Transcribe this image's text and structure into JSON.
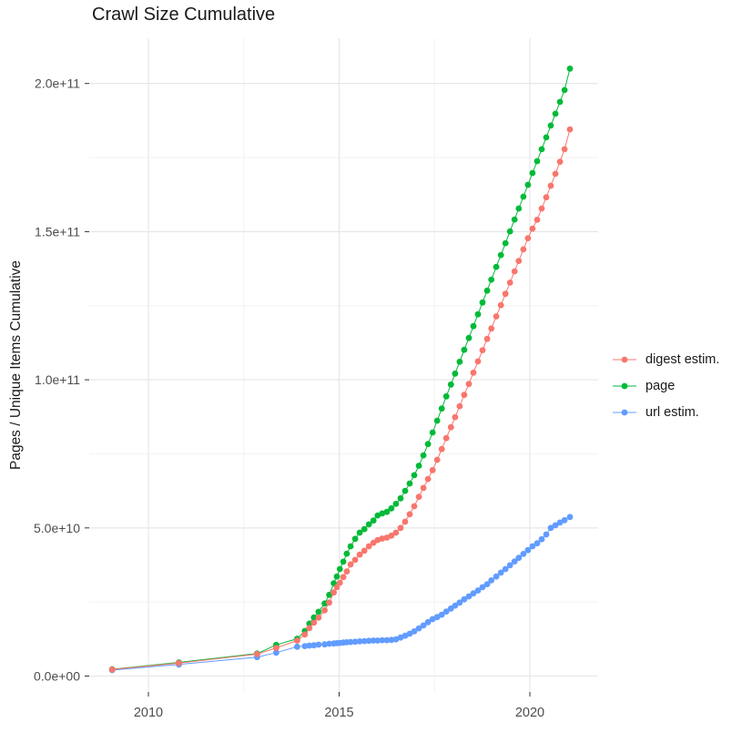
{
  "chart_data": {
    "type": "scatter",
    "title": "Crawl Size Cumulative",
    "ylabel": "Pages / Unique Items Cumulative",
    "xlabel": "",
    "legend_position": "right",
    "grid": true,
    "xlim_years": [
      2008.45,
      2021.79
    ],
    "ylim": [
      0,
      215000000000.0
    ],
    "x_ticks": [
      {
        "year": 2010,
        "label": "2010"
      },
      {
        "year": 2015,
        "label": "2015"
      },
      {
        "year": 2020,
        "label": "2020"
      }
    ],
    "x_minor_years": [
      2012.5,
      2017.5
    ],
    "y_ticks": [
      {
        "value_e9": 0,
        "label": "0.0e+00"
      },
      {
        "value_e9": 50,
        "label": "5.0e+10"
      },
      {
        "value_e9": 100,
        "label": "1.0e+11"
      },
      {
        "value_e9": 150,
        "label": "1.5e+11"
      },
      {
        "value_e9": 200,
        "label": "2.0e+11"
      }
    ],
    "y_minor_e9": [
      25,
      75,
      125,
      175
    ],
    "x_years": [
      2009.05,
      2010.8,
      2012.85,
      2013.35,
      2013.9,
      2014.1,
      2014.22,
      2014.34,
      2014.46,
      2014.62,
      2014.74,
      2014.86,
      2014.94,
      2015.02,
      2015.11,
      2015.2,
      2015.3,
      2015.42,
      2015.54,
      2015.66,
      2015.78,
      2015.9,
      2016.01,
      2016.13,
      2016.25,
      2016.37,
      2016.49,
      2016.61,
      2016.73,
      2016.85,
      2016.97,
      2017.09,
      2017.21,
      2017.33,
      2017.45,
      2017.57,
      2017.69,
      2017.81,
      2017.93,
      2018.04,
      2018.16,
      2018.28,
      2018.4,
      2018.52,
      2018.64,
      2018.76,
      2018.88,
      2018.99,
      2019.12,
      2019.24,
      2019.36,
      2019.48,
      2019.6,
      2019.71,
      2019.83,
      2019.95,
      2020.07,
      2020.19,
      2020.31,
      2020.43,
      2020.55,
      2020.67,
      2020.79,
      2020.91,
      2021.05
    ],
    "series": [
      {
        "name": "digest estim.",
        "color": "#F8766D",
        "values_e9": [
          2.2,
          4.4,
          7.4,
          9.5,
          12.0,
          14.0,
          16.2,
          18.0,
          19.7,
          22.2,
          24.8,
          28.2,
          30.0,
          31.5,
          33.4,
          35.3,
          37.7,
          39.2,
          41.0,
          42.3,
          43.8,
          45.0,
          45.9,
          46.4,
          46.7,
          47.4,
          48.4,
          50.0,
          52.1,
          54.6,
          57.3,
          60.5,
          63.5,
          66.5,
          69.5,
          73.0,
          76.6,
          80.3,
          84.0,
          87.4,
          91.1,
          94.9,
          98.6,
          102.4,
          106.2,
          110.0,
          113.8,
          117.3,
          121.4,
          125.2,
          129.0,
          132.8,
          136.6,
          140.1,
          144.0,
          147.8,
          151.0,
          154.0,
          157.8,
          161.6,
          165.5,
          169.5,
          173.6,
          177.8,
          184.5
        ]
      },
      {
        "name": "page",
        "color": "#00BA38",
        "values_e9": [
          2.3,
          4.6,
          7.6,
          10.5,
          12.6,
          15.2,
          17.7,
          19.8,
          21.7,
          24.5,
          27.4,
          31.3,
          33.6,
          36.1,
          38.6,
          41.3,
          43.8,
          46.3,
          48.4,
          49.6,
          51.2,
          52.5,
          54.2,
          54.9,
          55.4,
          56.6,
          58.1,
          60.0,
          62.5,
          65.0,
          67.8,
          71.0,
          74.5,
          78.3,
          82.2,
          86.2,
          90.3,
          94.4,
          98.4,
          102.1,
          106.1,
          110.1,
          114.1,
          118.1,
          122.1,
          126.1,
          130.1,
          133.8,
          138.1,
          142.1,
          146.1,
          150.1,
          154.1,
          157.8,
          161.8,
          165.8,
          169.8,
          173.8,
          177.8,
          181.8,
          185.8,
          189.8,
          193.8,
          197.8,
          205.0
        ]
      },
      {
        "name": "url estim.",
        "color": "#619CFF",
        "values_e9": [
          2.0,
          3.9,
          6.4,
          7.9,
          9.9,
          10.1,
          10.3,
          10.4,
          10.6,
          10.7,
          10.9,
          11.0,
          11.1,
          11.2,
          11.3,
          11.4,
          11.5,
          11.6,
          11.7,
          11.8,
          11.9,
          12.0,
          12.0,
          12.1,
          12.1,
          12.2,
          12.4,
          13.0,
          13.6,
          14.3,
          15.1,
          16.1,
          17.1,
          18.2,
          19.2,
          19.9,
          20.7,
          21.8,
          22.8,
          23.8,
          24.8,
          25.9,
          26.9,
          27.9,
          28.9,
          30.0,
          31.0,
          32.3,
          33.6,
          34.9,
          36.1,
          37.4,
          38.7,
          39.9,
          41.2,
          42.5,
          43.8,
          44.8,
          46.2,
          47.8,
          50.0,
          50.9,
          51.8,
          52.6,
          53.7
        ]
      }
    ],
    "style": {
      "major_grid_color": "#e5e5e5",
      "minor_grid_color": "#f2f2f2",
      "tick_label_color": "#4d4d4d",
      "tick_mark_color": "#333333",
      "point_radius": 3.4
    }
  }
}
